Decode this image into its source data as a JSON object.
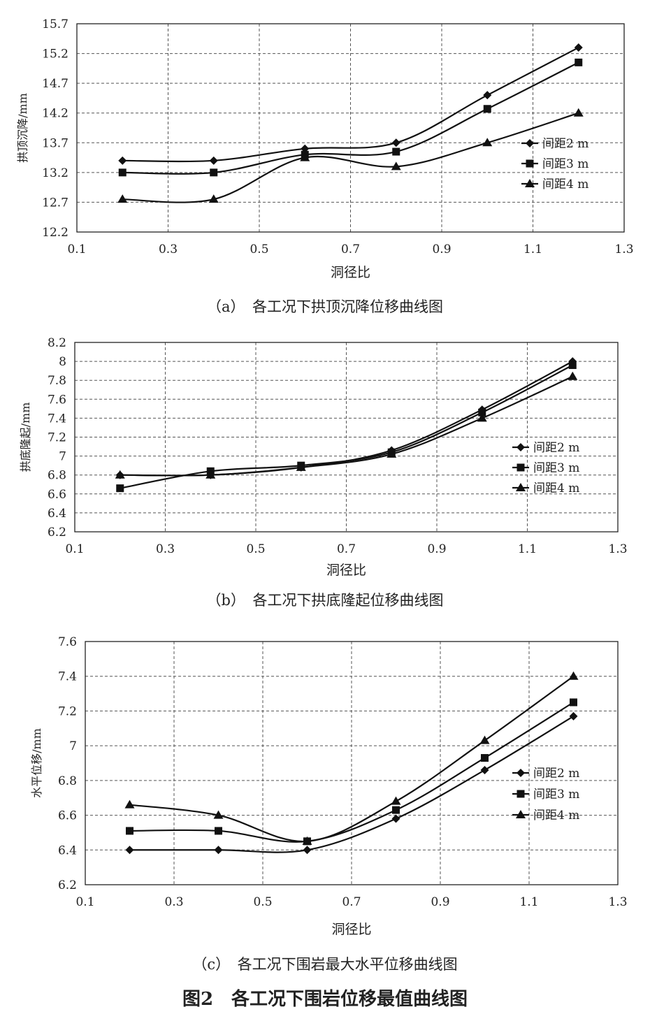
{
  "figure_title": "图2　各工况下围岩位移最值曲线图",
  "chart_data": [
    {
      "type": "line",
      "caption": "（a）　各工况下拱顶沉降位移曲线图",
      "xlabel": "洞径比",
      "ylabel": "拱顶沉降/mm",
      "xlim": [
        0.1,
        1.3
      ],
      "ylim": [
        12.2,
        15.7
      ],
      "xticks": [
        "0.1",
        "0.3",
        "0.5",
        "0.7",
        "0.9",
        "1.1",
        "1.3"
      ],
      "yticks": [
        "12.2",
        "12.7",
        "13.2",
        "13.7",
        "14.2",
        "14.7",
        "15.2",
        "15.7"
      ],
      "grid": true,
      "legend_position": "right",
      "x": [
        0.2,
        0.4,
        0.6,
        0.8,
        1.0,
        1.2
      ],
      "series": [
        {
          "name": "间距2 m",
          "marker": "diamond",
          "values": [
            13.4,
            13.4,
            13.6,
            13.7,
            14.5,
            15.3
          ]
        },
        {
          "name": "间距3 m",
          "marker": "square",
          "values": [
            13.2,
            13.2,
            13.5,
            13.55,
            14.27,
            15.05
          ]
        },
        {
          "name": "间距4 m",
          "marker": "triangle",
          "values": [
            12.75,
            12.75,
            13.45,
            13.3,
            13.7,
            14.2
          ]
        }
      ]
    },
    {
      "type": "line",
      "caption": "（b）　各工况下拱底隆起位移曲线图",
      "xlabel": "洞径比",
      "ylabel": "拱底隆起/mm",
      "xlim": [
        0.1,
        1.3
      ],
      "ylim": [
        6.2,
        8.2
      ],
      "xticks": [
        "0.1",
        "0.3",
        "0.5",
        "0.7",
        "0.9",
        "1.1",
        "1.3"
      ],
      "yticks": [
        "6.2",
        "6.4",
        "6.6",
        "6.8",
        "7",
        "7.2",
        "7.4",
        "7.6",
        "7.8",
        "8",
        "8.2"
      ],
      "grid": true,
      "legend_position": "right",
      "x": [
        0.2,
        0.4,
        0.6,
        0.8,
        1.0,
        1.2
      ],
      "series": [
        {
          "name": "间距2 m",
          "marker": "diamond",
          "values": [
            6.8,
            6.8,
            6.88,
            7.06,
            7.49,
            8.0
          ]
        },
        {
          "name": "间距3 m",
          "marker": "square",
          "values": [
            6.66,
            6.84,
            6.9,
            7.04,
            7.46,
            7.96
          ]
        },
        {
          "name": "间距4 m",
          "marker": "triangle",
          "values": [
            6.8,
            6.8,
            6.88,
            7.02,
            7.4,
            7.84
          ]
        }
      ]
    },
    {
      "type": "line",
      "caption": "（c）　各工况下围岩最大水平位移曲线图",
      "xlabel": "洞径比",
      "ylabel": "水平位移/mm",
      "xlim": [
        0.1,
        1.3
      ],
      "ylim": [
        6.2,
        7.6
      ],
      "xticks": [
        "0.1",
        "0.3",
        "0.5",
        "0.7",
        "0.9",
        "1.1",
        "1.3"
      ],
      "yticks": [
        "6.2",
        "6.4",
        "6.6",
        "6.8",
        "7",
        "7.2",
        "7.4",
        "7.6"
      ],
      "grid": true,
      "legend_position": "right",
      "x": [
        0.2,
        0.4,
        0.6,
        0.8,
        1.0,
        1.2
      ],
      "series": [
        {
          "name": "间距2 m",
          "marker": "diamond",
          "values": [
            6.4,
            6.4,
            6.4,
            6.58,
            6.86,
            7.17
          ]
        },
        {
          "name": "间距3 m",
          "marker": "square",
          "values": [
            6.51,
            6.51,
            6.45,
            6.63,
            6.93,
            7.25
          ]
        },
        {
          "name": "间距4 m",
          "marker": "triangle",
          "values": [
            6.66,
            6.6,
            6.45,
            6.68,
            7.03,
            7.4
          ]
        }
      ]
    }
  ]
}
